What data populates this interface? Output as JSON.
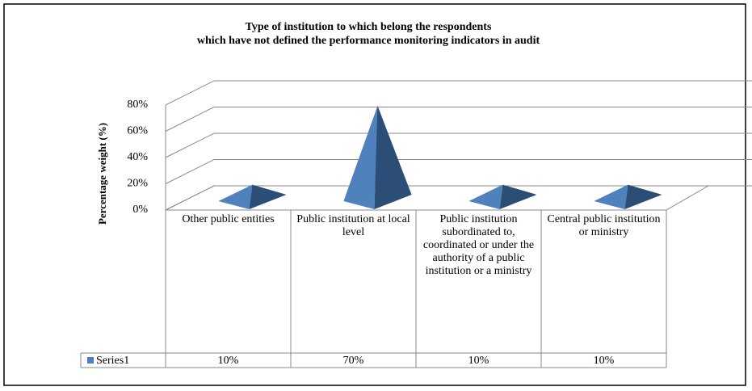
{
  "chart_data": {
    "type": "pyramid",
    "title_lines": [
      "Type of institution  to which belong the respondents",
      "which have not defined the performance monitoring indicators in audit"
    ],
    "y_label": "Percentage weight (%)",
    "categories": [
      "Other public entities",
      "Public institution at local level",
      "Public institution subordinated to, coordinated or under the authority of a public institution or a ministry",
      "Central public institution or ministry"
    ],
    "series": [
      {
        "name": "Series1",
        "color": "#4f81bd",
        "values": [
          10,
          70,
          10,
          10
        ],
        "value_labels": [
          "10%",
          "70%",
          "10%",
          "10%"
        ]
      }
    ],
    "ylim": [
      0,
      80
    ],
    "yticks": [
      {
        "value": 0,
        "label": "0%"
      },
      {
        "value": 20,
        "label": "20%"
      },
      {
        "value": 40,
        "label": "40%"
      },
      {
        "value": 60,
        "label": "60%"
      },
      {
        "value": 80,
        "label": "80%"
      }
    ],
    "grid": true
  }
}
